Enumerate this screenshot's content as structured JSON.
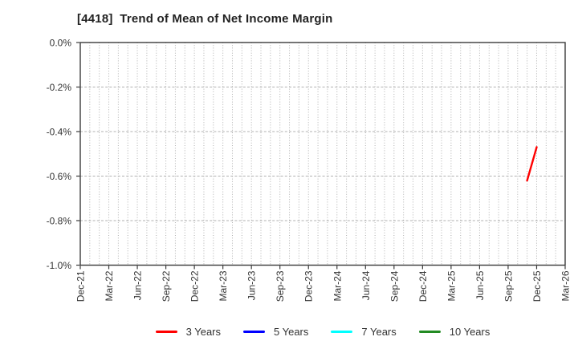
{
  "chart_data": {
    "type": "line",
    "title": "[4418]  Trend of Mean of Net Income Margin",
    "xlabel": "",
    "ylabel": "",
    "x_tick_labels": [
      "Dec-21",
      "Mar-22",
      "Jun-22",
      "Sep-22",
      "Dec-22",
      "Mar-23",
      "Jun-23",
      "Sep-23",
      "Dec-23",
      "Mar-24",
      "Jun-24",
      "Sep-24",
      "Dec-24",
      "Mar-25",
      "Jun-25",
      "Sep-25",
      "Dec-25",
      "Mar-26"
    ],
    "x_minor_divisions_per_tick": 3,
    "y_tick_labels": [
      "0.0%",
      "-0.2%",
      "-0.4%",
      "-0.6%",
      "-0.8%",
      "-1.0%"
    ],
    "ylim": [
      -1.0,
      0.0
    ],
    "grid": "dotted",
    "legend_position": "bottom",
    "series": [
      {
        "name": "3 Years",
        "color": "#ff0000",
        "points": [
          {
            "label": "Nov-25",
            "month_offset": 47,
            "value": -0.62
          },
          {
            "label": "Dec-25",
            "month_offset": 48,
            "value": -0.47
          }
        ]
      },
      {
        "name": "5 Years",
        "color": "#0000ff",
        "points": []
      },
      {
        "name": "7 Years",
        "color": "#00ffff",
        "points": []
      },
      {
        "name": "10 Years",
        "color": "#228b22",
        "points": []
      }
    ]
  }
}
